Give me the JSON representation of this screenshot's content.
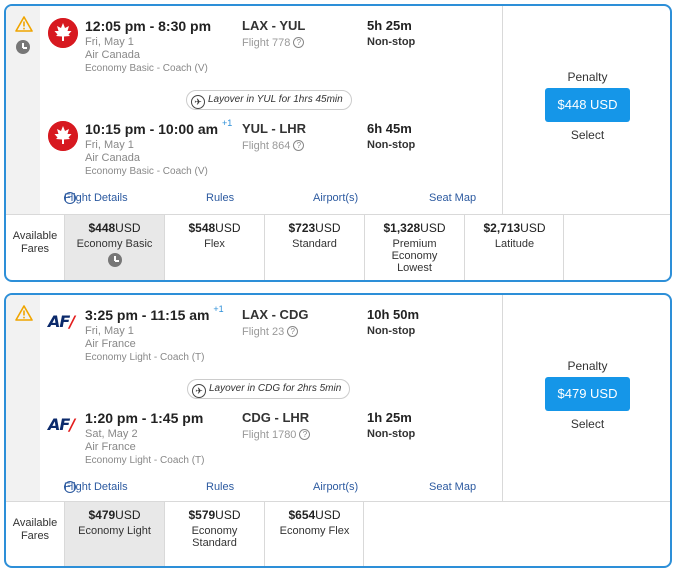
{
  "itineraries": [
    {
      "legs": [
        {
          "times": "12:05 pm - 8:30 pm",
          "plus_day": "",
          "date": "Fri, May 1",
          "airline": "Air Canada",
          "cabin": "Economy Basic - Coach (V)",
          "route": "LAX - YUL",
          "flight": "Flight 778",
          "duration": "5h 25m",
          "stops": "Non-stop"
        },
        {
          "times": "10:15 pm - 10:00 am",
          "plus_day": "+1",
          "date": "Fri, May 1",
          "airline": "Air Canada",
          "cabin": "Economy Basic - Coach (V)",
          "route": "YUL - LHR",
          "flight": "Flight 864",
          "duration": "6h 45m",
          "stops": "Non-stop"
        }
      ],
      "layover": "Layover in YUL for 1hrs 45min",
      "links": {
        "details": "Flight Details",
        "rules": "Rules",
        "airports": "Airport(s)",
        "seatmap": "Seat Map"
      },
      "penalty": "Penalty",
      "price": "$448 USD",
      "select": "Select",
      "fares_label": "Available Fares",
      "fares": [
        {
          "amount": "$448",
          "currency": "USD",
          "name": "Economy Basic"
        },
        {
          "amount": "$548",
          "currency": "USD",
          "name": "Flex"
        },
        {
          "amount": "$723",
          "currency": "USD",
          "name": "Standard"
        },
        {
          "amount": "$1,328",
          "currency": "USD",
          "name": "Premium Economy Lowest"
        },
        {
          "amount": "$2,713",
          "currency": "USD",
          "name": "Latitude"
        }
      ]
    },
    {
      "legs": [
        {
          "times": "3:25 pm - 11:15 am",
          "plus_day": "+1",
          "date": "Fri, May 1",
          "airline": "Air France",
          "cabin": "Economy Light - Coach (T)",
          "route": "LAX - CDG",
          "flight": "Flight 23",
          "duration": "10h 50m",
          "stops": "Non-stop"
        },
        {
          "times": "1:20 pm - 1:45 pm",
          "plus_day": "",
          "date": "Sat, May 2",
          "airline": "Air France",
          "cabin": "Economy Light - Coach (T)",
          "route": "CDG - LHR",
          "flight": "Flight 1780",
          "duration": "1h 25m",
          "stops": "Non-stop"
        }
      ],
      "layover": "Layover in CDG for 2hrs 5min",
      "links": {
        "details": "Flight Details",
        "rules": "Rules",
        "airports": "Airport(s)",
        "seatmap": "Seat Map"
      },
      "penalty": "Penalty",
      "price": "$479 USD",
      "select": "Select",
      "fares_label": "Available Fares",
      "fares": [
        {
          "amount": "$479",
          "currency": "USD",
          "name": "Economy Light"
        },
        {
          "amount": "$579",
          "currency": "USD",
          "name": "Economy Standard"
        },
        {
          "amount": "$654",
          "currency": "USD",
          "name": "Economy Flex"
        }
      ]
    }
  ],
  "logos": {
    "af_text": "AF",
    "af_slash": "/"
  },
  "icons": {
    "warning": "warning-icon",
    "clock": "clock-icon",
    "info": "info-icon",
    "plane": "plane-icon",
    "collapse": "minus-circle-icon"
  },
  "colors": {
    "accent": "#2d8fd8",
    "button": "#1596e8",
    "link": "#2c5aa0",
    "air_canada_red": "#d71920",
    "warning": "#f0a500"
  }
}
